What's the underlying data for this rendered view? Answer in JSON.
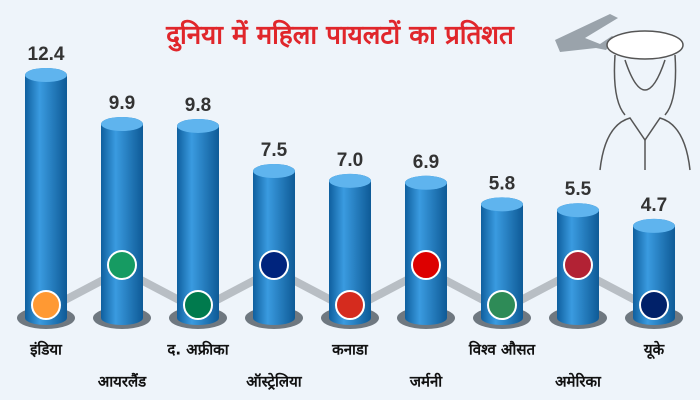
{
  "chart_data": {
    "type": "bar",
    "title": "दुनिया में महिला पायलटों का प्रतिशत",
    "categories": [
      "इंडिया",
      "आयरलैंड",
      "द. अफ्रीका",
      "ऑस्ट्रेलिया",
      "कनाडा",
      "जर्मनी",
      "विश्व औसत",
      "अमेरिका",
      "यूके"
    ],
    "values": [
      12.4,
      9.9,
      9.8,
      7.5,
      7.0,
      6.9,
      5.8,
      5.5,
      4.7
    ],
    "value_labels": [
      "12.4",
      "9.9",
      "9.8",
      "7.5",
      "7.0",
      "6.9",
      "5.8",
      "5.5",
      "4.7"
    ],
    "color": "#1b7cc4"
  }
}
